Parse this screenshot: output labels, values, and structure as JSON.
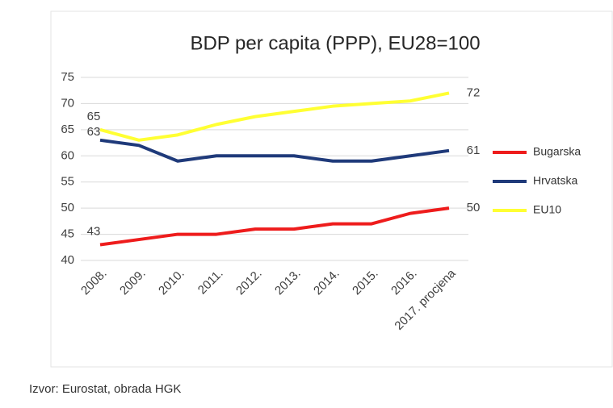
{
  "chart_data": {
    "type": "line",
    "title": "BDP per capita (PPP), EU28=100",
    "categories": [
      "2008.",
      "2009.",
      "2010.",
      "2011.",
      "2012.",
      "2013.",
      "2014.",
      "2015.",
      "2016.",
      "2017. procjena"
    ],
    "series": [
      {
        "name": "Bugarska",
        "color": "#ee1c1c",
        "values": [
          43,
          44,
          45,
          45,
          46,
          46,
          47,
          47,
          49,
          50
        ]
      },
      {
        "name": "Hrvatska",
        "color": "#1f3a7a",
        "values": [
          63,
          62,
          59,
          60,
          60,
          60,
          59,
          59,
          60,
          61
        ]
      },
      {
        "name": "EU10",
        "color": "#ffff33",
        "values": [
          65,
          63,
          64,
          66,
          67.5,
          68.5,
          69.5,
          70,
          70.5,
          72
        ]
      }
    ],
    "ylim": [
      40,
      75
    ],
    "yticks": [
      40,
      45,
      50,
      55,
      60,
      65,
      70,
      75
    ],
    "grid": true,
    "legend": "right",
    "source": "Izvor: Eurostat, obrada HGK"
  }
}
